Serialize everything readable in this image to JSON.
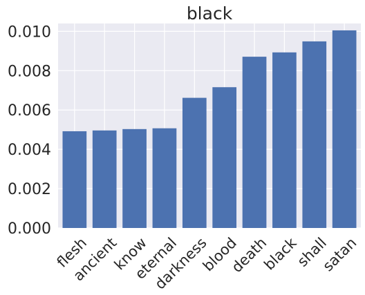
{
  "chart_data": {
    "type": "bar",
    "title": "black",
    "xlabel": "",
    "ylabel": "",
    "categories": [
      "flesh",
      "ancient",
      "know",
      "eternal",
      "darkness",
      "blood",
      "death",
      "black",
      "shall",
      "satan"
    ],
    "values": [
      0.00492,
      0.00496,
      0.00503,
      0.00507,
      0.00662,
      0.00716,
      0.00871,
      0.00893,
      0.00949,
      0.01005
    ],
    "ylim": [
      0,
      0.0104
    ],
    "yticks": [
      "0.000",
      "0.002",
      "0.004",
      "0.006",
      "0.008",
      "0.010"
    ],
    "ytick_values": [
      0,
      0.002,
      0.004,
      0.006,
      0.008,
      0.01
    ],
    "grid": true,
    "legend": "none",
    "colors": {
      "bar": "#4c72b0",
      "plot_background": "#eaeaf2",
      "grid": "#ffffff",
      "text": "#262626"
    }
  }
}
